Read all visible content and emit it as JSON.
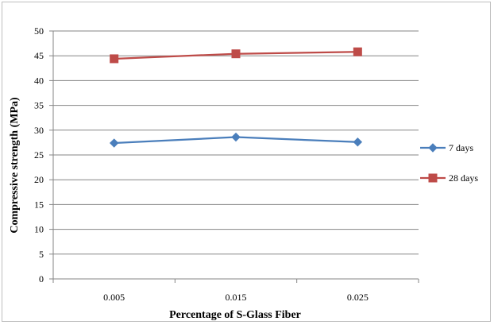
{
  "chart_data": {
    "type": "line",
    "title": "",
    "xlabel": "Percentage of S-Glass Fiber",
    "ylabel": "Compressive strength (MPa)",
    "categories": [
      "0.005",
      "0.015",
      "0.025"
    ],
    "ylim": [
      0,
      50
    ],
    "yticks": [
      "0",
      "5",
      "10",
      "15",
      "20",
      "25",
      "30",
      "35",
      "40",
      "45",
      "50"
    ],
    "grid": true,
    "legend_position": "right",
    "series": [
      {
        "name": "7 days",
        "values": [
          27.4,
          28.6,
          27.6
        ],
        "color": "#4a7ebb",
        "marker": "diamond"
      },
      {
        "name": "28 days",
        "values": [
          44.4,
          45.4,
          45.8
        ],
        "color": "#be4b48",
        "marker": "square"
      }
    ]
  }
}
